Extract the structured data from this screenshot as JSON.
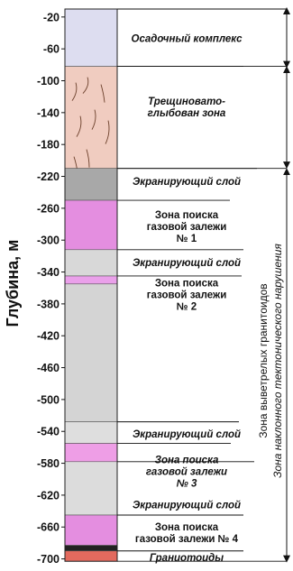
{
  "diagram": {
    "axis_label": "Глубина, м",
    "axis_range": [
      -10,
      -705
    ],
    "ticks": [
      -20,
      -60,
      -100,
      -140,
      -180,
      -220,
      -260,
      -300,
      -340,
      -380,
      -420,
      -460,
      -500,
      -540,
      -580,
      -620,
      -660,
      -700
    ],
    "layers": [
      {
        "top": -10,
        "bottom": -82,
        "color": "#ddddf0",
        "label": [
          "Осадочный комплекс"
        ],
        "italic": true
      },
      {
        "top": -82,
        "bottom": -210,
        "color": "#f0ccc0",
        "label": [
          "Трещиновато-",
          "глыбован зона"
        ],
        "italic": true,
        "cracks": true
      },
      {
        "top": -210,
        "bottom": -250,
        "color": "#a8a8a8",
        "label": [
          "Экранирующий слой"
        ],
        "italic": true
      },
      {
        "top": -250,
        "bottom": -312,
        "color": "#e48ee0",
        "label": [
          "Зона поиска",
          "газовой залежи",
          "№ 1"
        ],
        "italic": false
      },
      {
        "top": -312,
        "bottom": -345,
        "color": "#d8d8d8",
        "label": [
          "Экранирующий слой"
        ],
        "italic": true
      },
      {
        "top": -345,
        "bottom": -355,
        "color": "#eaa0ea",
        "label": [
          "Зона поиска",
          "газовой залежи",
          "№ 2"
        ],
        "italic": false
      },
      {
        "top": -355,
        "bottom": -528,
        "color": "#d4d4d4",
        "label": [],
        "italic": false
      },
      {
        "top": -528,
        "bottom": -555,
        "color": "#dedede",
        "label": [
          "Экранирующий слой"
        ],
        "italic": true
      },
      {
        "top": -555,
        "bottom": -578,
        "color": "#ee9ee6",
        "label": [
          "Зона поиска",
          "газовой залежи",
          "№ 3"
        ],
        "italic": true
      },
      {
        "top": -578,
        "bottom": -645,
        "color": "#dcdcdc",
        "label": [
          "Экранирующий слой"
        ],
        "italic": true
      },
      {
        "top": -645,
        "bottom": -683,
        "color": "#e48ee0",
        "label": [
          "Зона поиска",
          "газовой залежи № 4"
        ],
        "italic": false
      },
      {
        "top": -683,
        "bottom": -690,
        "color": "#222222",
        "label": [],
        "italic": false
      },
      {
        "top": -690,
        "bottom": -703,
        "color": "#e36a5e",
        "label": [
          "Граниотоиды"
        ],
        "italic": true
      }
    ],
    "side_labels": {
      "line1": "Зона выветрелых гранитоидов",
      "line2": "Зона наклонного тектонического нарушения"
    }
  }
}
